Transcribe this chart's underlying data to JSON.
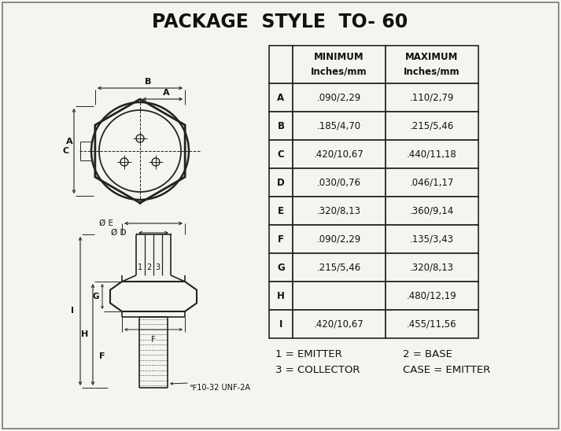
{
  "title": "PACKAGE  STYLE  TO- 60",
  "title_fontsize": 17,
  "title_fontweight": "bold",
  "table_headers": [
    "",
    "MINIMUM\nInches/mm",
    "MAXIMUM\nInches/mm"
  ],
  "table_rows": [
    [
      "A",
      ".090/2,29",
      ".110/2,79"
    ],
    [
      "B",
      ".185/4,70",
      ".215/5,46"
    ],
    [
      "C",
      ".420/10,67",
      ".440/11,18"
    ],
    [
      "D",
      ".030/0,76",
      ".046/1,17"
    ],
    [
      "E",
      ".320/8,13",
      ".360/9,14"
    ],
    [
      "F",
      ".090/2,29",
      ".135/3,43"
    ],
    [
      "G",
      ".215/5,46",
      ".320/8,13"
    ],
    [
      "H",
      "",
      ".480/12,19"
    ],
    [
      "I",
      ".420/10,67",
      ".455/11,56"
    ]
  ],
  "footnotes": [
    [
      "1 = EMITTER",
      "2 = BASE"
    ],
    [
      "3 = COLLECTOR",
      "CASE = EMITTER"
    ]
  ],
  "bg_color": "#f5f5f0",
  "text_color": "#111111",
  "line_color": "#222222",
  "table_font_size": 8.5,
  "thread_label": "℉10-32 UNF-2A"
}
